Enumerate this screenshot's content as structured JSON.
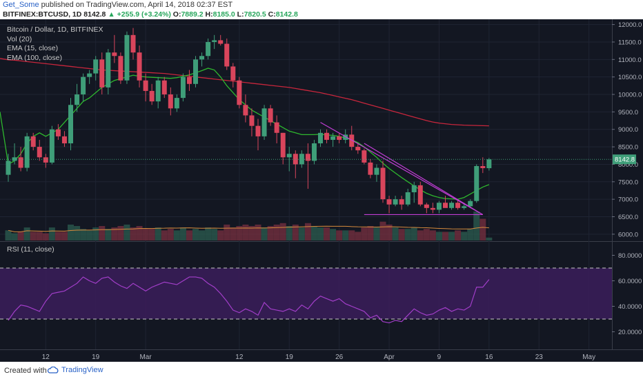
{
  "header": {
    "author": "Get_Some",
    "published_text": "published on TradingView.com, April 14, 2018 02:37 EST",
    "symbol": "BITFINEX:BTCUSD, 1D",
    "last": "8142.8",
    "arrow": "▲",
    "change": "+255.9 (+3.24%)",
    "o_label": "O:",
    "o_value": "7889.2",
    "h_label": "H:",
    "h_value": "8185.0",
    "l_label": "L:",
    "l_value": "7820.5",
    "c_label": "C:",
    "c_value": "8142.8"
  },
  "legend": {
    "main": "Bitcoin / Dollar, 1D, BITFINEX",
    "vol": "Vol (20)",
    "ema15": "EMA (15, close)",
    "ema100": "EMA (100, close)"
  },
  "rsi_legend": "RSI (11, close)",
  "footer": {
    "created_with": "Created with",
    "brand": "TradingView"
  },
  "colors": {
    "bull": "#3f9e79",
    "bear": "#d9455c",
    "ema15": "#2eb82e",
    "ema100": "#c8263c",
    "trendline": "#c23ed6",
    "rsi": "#a23ec9",
    "rsi_band": "#3b1d5a",
    "background": "#131722"
  },
  "chart_data": {
    "type": "candlestick",
    "price_axis": {
      "range": [
        5800,
        12150
      ],
      "ticks": [
        "12000.0",
        "11500.0",
        "11000.0",
        "10500.0",
        "10000.0",
        "9500.0",
        "9000.0",
        "8500.0",
        "8000.0",
        "7500.0",
        "7000.0",
        "6500.0",
        "6000.0"
      ]
    },
    "last_price_label": "8142.8",
    "x_axis": {
      "labels": [
        "12",
        "19",
        "Mar",
        "12",
        "19",
        "26",
        "Apr",
        "9",
        "16",
        "23",
        "May"
      ]
    },
    "candles": [
      [
        7700,
        8300,
        7500,
        8100
      ],
      [
        8100,
        8600,
        8000,
        8200
      ],
      [
        8200,
        8500,
        7800,
        7900
      ],
      [
        7900,
        8900,
        7800,
        8800
      ],
      [
        8800,
        8900,
        8400,
        8500
      ],
      [
        8500,
        8700,
        8100,
        8200
      ],
      [
        8200,
        8300,
        7900,
        8050
      ],
      [
        8050,
        9100,
        8000,
        9000
      ],
      [
        9000,
        9150,
        8700,
        8800
      ],
      [
        8800,
        8950,
        8500,
        8600
      ],
      [
        8600,
        9900,
        8400,
        9700
      ],
      [
        9700,
        10300,
        9500,
        10000
      ],
      [
        10000,
        10600,
        9800,
        10500
      ],
      [
        10500,
        10700,
        10300,
        10600
      ],
      [
        10600,
        11100,
        10400,
        11000
      ],
      [
        11000,
        11200,
        10000,
        10200
      ],
      [
        10200,
        11300,
        10000,
        11200
      ],
      [
        11200,
        11700,
        10900,
        11100
      ],
      [
        11100,
        11200,
        10300,
        10400
      ],
      [
        10400,
        11800,
        10300,
        11700
      ],
      [
        11700,
        11900,
        11000,
        11200
      ],
      [
        11200,
        11400,
        10200,
        10400
      ],
      [
        10400,
        10600,
        9800,
        10100
      ],
      [
        10100,
        10300,
        9700,
        9800
      ],
      [
        9800,
        10500,
        9600,
        10400
      ],
      [
        10400,
        10500,
        9900,
        10000
      ],
      [
        10000,
        10200,
        9400,
        9600
      ],
      [
        9600,
        10000,
        9500,
        9900
      ],
      [
        9900,
        10600,
        9800,
        10500
      ],
      [
        10500,
        10700,
        10100,
        10300
      ],
      [
        10300,
        11100,
        10200,
        11000
      ],
      [
        11000,
        11200,
        10800,
        11100
      ],
      [
        11100,
        11600,
        11000,
        11500
      ],
      [
        11500,
        11700,
        11300,
        11550
      ],
      [
        11550,
        11700,
        11400,
        11450
      ],
      [
        11450,
        11600,
        10700,
        10800
      ],
      [
        10800,
        10900,
        10200,
        10400
      ],
      [
        10400,
        10500,
        9600,
        9700
      ],
      [
        9700,
        10000,
        9200,
        9400
      ],
      [
        9400,
        9600,
        8800,
        9100
      ],
      [
        9100,
        9300,
        8400,
        8800
      ],
      [
        8800,
        9700,
        8700,
        9600
      ],
      [
        9600,
        9700,
        9100,
        9200
      ],
      [
        9200,
        9400,
        8600,
        8900
      ],
      [
        8900,
        8900,
        8000,
        8200
      ],
      [
        8200,
        8500,
        7800,
        8300
      ],
      [
        8300,
        8400,
        7600,
        8000
      ],
      [
        8000,
        8400,
        7900,
        8300
      ],
      [
        8300,
        8600,
        7300,
        8100
      ],
      [
        8100,
        8700,
        8000,
        8600
      ],
      [
        8600,
        9000,
        8500,
        8900
      ],
      [
        8900,
        9000,
        8600,
        8700
      ],
      [
        8700,
        8900,
        8500,
        8800
      ],
      [
        8800,
        8900,
        8600,
        8700
      ],
      [
        8700,
        9000,
        8600,
        8850
      ],
      [
        8850,
        9100,
        8400,
        8500
      ],
      [
        8500,
        8600,
        8300,
        8400
      ],
      [
        8400,
        8450,
        8000,
        8050
      ],
      [
        8050,
        8150,
        7600,
        7700
      ],
      [
        7700,
        8000,
        7500,
        7900
      ],
      [
        7900,
        8100,
        6900,
        7000
      ],
      [
        7000,
        7100,
        6600,
        6850
      ],
      [
        6850,
        7100,
        6800,
        7000
      ],
      [
        7000,
        7100,
        6700,
        6850
      ],
      [
        6850,
        7300,
        6800,
        7200
      ],
      [
        7200,
        7500,
        6900,
        7400
      ],
      [
        7400,
        7500,
        6800,
        6850
      ],
      [
        6850,
        6900,
        6600,
        6750
      ],
      [
        6750,
        6900,
        6600,
        6700
      ],
      [
        6700,
        6950,
        6600,
        6900
      ],
      [
        6900,
        7100,
        6800,
        6750
      ],
      [
        6750,
        6950,
        6700,
        6900
      ],
      [
        6900,
        7000,
        6700,
        6750
      ],
      [
        6750,
        6900,
        6700,
        6800
      ],
      [
        6800,
        7000,
        6750,
        6950
      ],
      [
        6950,
        8000,
        6900,
        7950
      ],
      [
        7950,
        8200,
        7750,
        7890
      ],
      [
        7889.2,
        8185,
        7820.5,
        8142.8
      ]
    ],
    "ema15": [
      8000,
      8100,
      8300,
      8600,
      8800,
      8900,
      8800,
      8900,
      9000,
      9200,
      9400,
      9600,
      9800,
      9900,
      10050,
      10200,
      10300,
      10400,
      10450,
      10500,
      10550,
      10520,
      10500,
      10490,
      10480,
      10470,
      10460,
      10480,
      10520,
      10560,
      10620,
      10680,
      10750,
      10700,
      10500,
      10250,
      10050,
      9850,
      9700,
      9550,
      9450,
      9350,
      9250,
      9150,
      9050,
      8950,
      8900,
      8850,
      8850,
      8850,
      8860,
      8840,
      8830,
      8800,
      8750,
      8700,
      8620,
      8500,
      8350,
      8200,
      8030,
      7880,
      7750,
      7620,
      7500,
      7380,
      7270,
      7170,
      7100,
      7050,
      7020,
      7010,
      7000,
      7050,
      7150,
      7250,
      7350,
      7420
    ],
    "ema100": [
      10990,
      10980,
      10960,
      10940,
      10920,
      10900,
      10880,
      10860,
      10840,
      10820,
      10800,
      10780,
      10760,
      10740,
      10720,
      10700,
      10690,
      10680,
      10670,
      10660,
      10650,
      10640,
      10630,
      10620,
      10610,
      10600,
      10580,
      10560,
      10540,
      10520,
      10500,
      10480,
      10460,
      10440,
      10420,
      10400,
      10380,
      10360,
      10340,
      10320,
      10300,
      10280,
      10260,
      10240,
      10220,
      10200,
      10170,
      10140,
      10110,
      10080,
      10050,
      10010,
      9970,
      9930,
      9890,
      9850,
      9800,
      9750,
      9700,
      9650,
      9600,
      9550,
      9500,
      9450,
      9400,
      9350,
      9300,
      9250,
      9210,
      9180,
      9160,
      9140,
      9130,
      9120,
      9115,
      9110,
      9105,
      9100
    ],
    "volume_rel": [
      0.35,
      0.25,
      0.3,
      0.45,
      0.3,
      0.3,
      0.25,
      0.45,
      0.3,
      0.3,
      0.55,
      0.5,
      0.4,
      0.35,
      0.45,
      0.5,
      0.4,
      0.45,
      0.5,
      0.55,
      0.45,
      0.5,
      0.4,
      0.4,
      0.45,
      0.35,
      0.4,
      0.35,
      0.45,
      0.35,
      0.4,
      0.35,
      0.45,
      0.4,
      0.35,
      0.55,
      0.45,
      0.5,
      0.55,
      0.5,
      0.55,
      0.45,
      0.5,
      0.55,
      0.6,
      0.5,
      0.55,
      0.45,
      0.6,
      0.5,
      0.45,
      0.45,
      0.4,
      0.35,
      0.35,
      0.35,
      0.3,
      0.45,
      0.5,
      0.45,
      0.65,
      0.55,
      0.45,
      0.4,
      0.4,
      0.45,
      0.35,
      0.4,
      0.35,
      0.3,
      0.3,
      0.3,
      0.35,
      0.3,
      0.4,
      1.0,
      0.75,
      0.1
    ],
    "rsi": {
      "axis_ticks": [
        "80.0000",
        "60.0000",
        "40.0000",
        "20.0000"
      ],
      "band": [
        30,
        70
      ],
      "values": [
        29,
        36,
        41,
        40,
        38,
        36,
        44,
        50,
        51,
        52,
        55,
        58,
        63,
        60,
        58,
        62,
        63,
        59,
        56,
        54,
        58,
        55,
        52,
        55,
        57,
        59,
        58,
        57,
        60,
        63,
        63,
        62,
        58,
        55,
        50,
        44,
        37,
        35,
        38,
        36,
        33,
        43,
        38,
        37,
        36,
        38,
        36,
        41,
        38,
        44,
        48,
        46,
        44,
        46,
        42,
        40,
        38,
        36,
        31,
        33,
        28,
        27,
        29,
        28,
        33,
        38,
        35,
        33,
        34,
        37,
        39,
        36,
        38,
        37,
        40,
        55,
        55,
        61
      ]
    }
  }
}
